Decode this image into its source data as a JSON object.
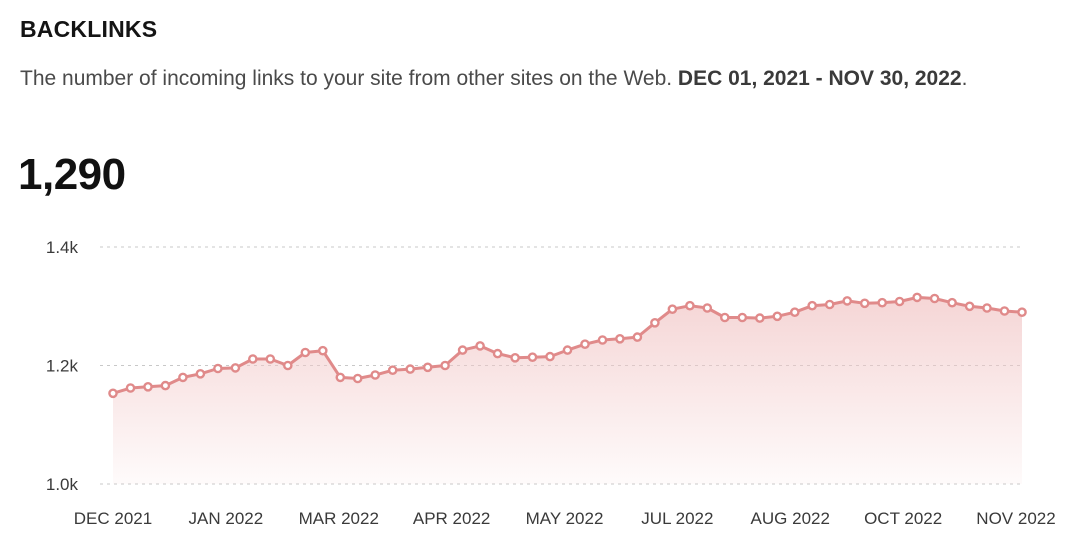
{
  "header": {
    "title": "BACKLINKS",
    "description": "The number of incoming links to your site from other sites on the Web.",
    "date_range": "DEC 01, 2021 - NOV 30, 2022",
    "description_end": ".",
    "total": "1,290"
  },
  "colors": {
    "line": "#e08a8a",
    "fill_top": "#f2c8c8",
    "marker_fill": "#ffffff",
    "grid": "#c8c8c8"
  },
  "chart_data": {
    "type": "area",
    "series": [
      {
        "values": [
          1153,
          1162,
          1164,
          1166,
          1180,
          1186,
          1195,
          1196,
          1211,
          1211,
          1200,
          1222,
          1225,
          1180,
          1178,
          1184,
          1192,
          1194,
          1197,
          1200,
          1226,
          1233,
          1220,
          1213,
          1214,
          1215,
          1226,
          1236,
          1243,
          1245,
          1248,
          1272,
          1295,
          1301,
          1297,
          1281,
          1281,
          1280,
          1283,
          1290,
          1301,
          1303,
          1309,
          1305,
          1306,
          1308,
          1315,
          1313,
          1306,
          1300,
          1297,
          1292,
          1290
        ]
      }
    ],
    "x_ticks": [
      "DEC 2021",
      "JAN 2022",
      "MAR 2022",
      "APR 2022",
      "MAY 2022",
      "JUL 2022",
      "AUG 2022",
      "OCT 2022",
      "NOV 2022"
    ],
    "y_ticks": [
      "1.4k",
      "1.2k",
      "1.0k"
    ],
    "y_tick_values": [
      1400,
      1200,
      1000
    ],
    "ylim": [
      1000,
      1400
    ],
    "grid": true,
    "grid_style": "dashed",
    "markers": "hollow-circle"
  }
}
